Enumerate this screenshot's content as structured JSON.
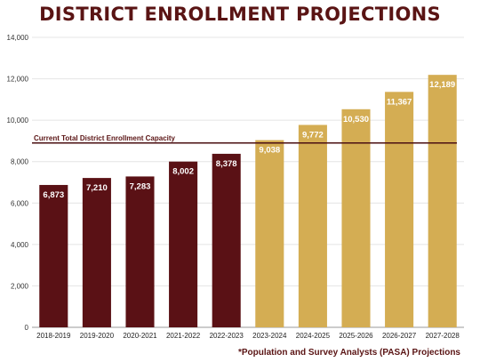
{
  "chart_data": {
    "type": "bar",
    "title": "DISTRICT ENROLLMENT PROJECTIONS",
    "categories": [
      "2018-2019",
      "2019-2020",
      "2020-2021",
      "2021-2022",
      "2022-2023",
      "2023-2024",
      "2024-2025",
      "2025-2026",
      "2026-2027",
      "2027-2028"
    ],
    "values": [
      6873,
      7210,
      7283,
      8002,
      8378,
      9038,
      9772,
      10530,
      11367,
      12189
    ],
    "value_labels": [
      "6,873",
      "7,210",
      "7,283",
      "8,002",
      "8,378",
      "9,038",
      "9,772",
      "10,530",
      "11,367",
      "12,189"
    ],
    "yticks": [
      "0",
      "2,000",
      "4,000",
      "6,000",
      "8,000",
      "10,000",
      "12,000",
      "14,000"
    ],
    "ylim": [
      0,
      14000
    ],
    "reference_line": {
      "label": "Current Total District Enrollment Capacity",
      "value": 8900,
      "color": "#4a0f12"
    },
    "colors": {
      "actual": "#5a1115",
      "projected": "#d4ad53"
    },
    "actual_count": 5,
    "grid": true,
    "xlabel": "",
    "ylabel": "",
    "footnote": "*Population and Survey Analysts (PASA) Projections"
  }
}
